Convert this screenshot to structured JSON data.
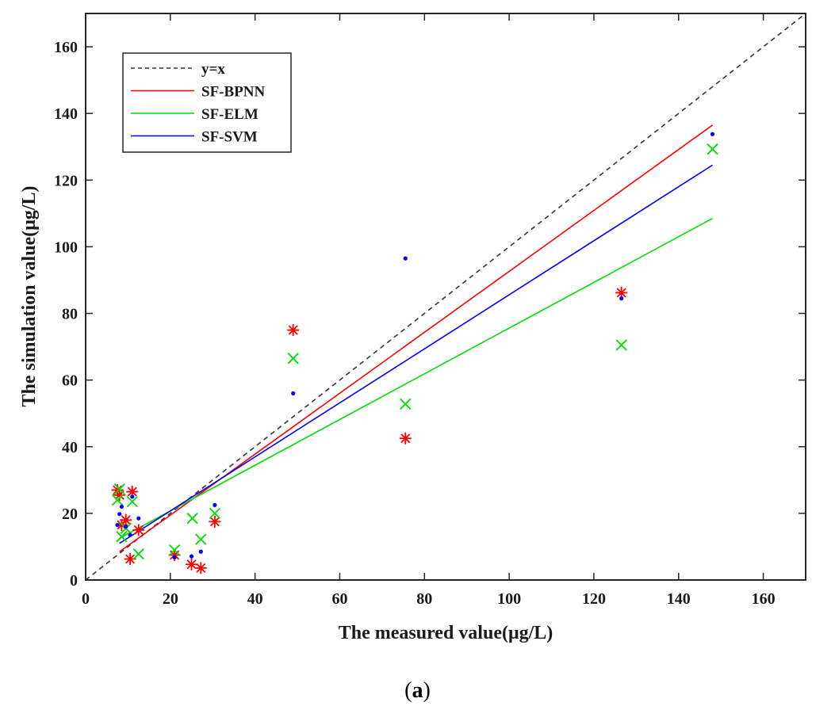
{
  "chart_data": {
    "type": "scatter",
    "xlabel": "The measured value(μg/L)",
    "ylabel": "The simulation value(μg/L)",
    "xlim": [
      0,
      170
    ],
    "ylim": [
      0,
      170
    ],
    "xticks": [
      0,
      20,
      40,
      60,
      80,
      100,
      120,
      140,
      160
    ],
    "yticks": [
      0,
      20,
      40,
      60,
      80,
      100,
      120,
      140,
      160
    ],
    "legend_position": "top-left",
    "lines": [
      {
        "name": "y=x",
        "color": "#333333",
        "dash": true,
        "x": [
          0,
          170
        ],
        "y": [
          0,
          170
        ]
      },
      {
        "name": "SF-BPNN",
        "color": "#ff0000",
        "dash": false,
        "x": [
          8,
          148
        ],
        "y": [
          8.5,
          136.5
        ]
      },
      {
        "name": "SF-ELM",
        "color": "#00dd00",
        "dash": false,
        "x": [
          8,
          148
        ],
        "y": [
          12.5,
          108.5
        ]
      },
      {
        "name": "SF-SVM",
        "color": "#0000ff",
        "dash": false,
        "x": [
          8,
          148
        ],
        "y": [
          11,
          124.5
        ]
      }
    ],
    "series": [
      {
        "name": "SF-BPNN",
        "marker": "asterisk",
        "color": "#ff0000",
        "points": [
          [
            7.5,
            27
          ],
          [
            8,
            25.5
          ],
          [
            8.5,
            16.5
          ],
          [
            9.5,
            18
          ],
          [
            10.5,
            6.3
          ],
          [
            11,
            26.5
          ],
          [
            12.5,
            15
          ],
          [
            21,
            7.5
          ],
          [
            25,
            4.7
          ],
          [
            27.2,
            3.6
          ],
          [
            30.5,
            17.5
          ],
          [
            49,
            75
          ],
          [
            75.5,
            42.5
          ],
          [
            126.5,
            86.2
          ]
        ]
      },
      {
        "name": "SF-ELM",
        "marker": "x",
        "color": "#00dd00",
        "points": [
          [
            7.5,
            24
          ],
          [
            8,
            27.3
          ],
          [
            8.5,
            13
          ],
          [
            9.5,
            15.5
          ],
          [
            11,
            23.5
          ],
          [
            12.5,
            7.8
          ],
          [
            21,
            9
          ],
          [
            25.2,
            18.5
          ],
          [
            27.2,
            12.2
          ],
          [
            30.5,
            20
          ],
          [
            49,
            66.5
          ],
          [
            75.5,
            52.8
          ],
          [
            126.5,
            70.5
          ],
          [
            148,
            129.3
          ]
        ]
      },
      {
        "name": "SF-SVM",
        "marker": "dot",
        "color": "#0000ff",
        "points": [
          [
            7.5,
            16.5
          ],
          [
            8,
            19.8
          ],
          [
            8.5,
            22
          ],
          [
            9.5,
            16
          ],
          [
            10.5,
            13.5
          ],
          [
            11,
            25
          ],
          [
            12.5,
            18.5
          ],
          [
            21,
            6.8
          ],
          [
            25,
            7.1
          ],
          [
            27.2,
            8.5
          ],
          [
            30.5,
            22.5
          ],
          [
            49,
            56
          ],
          [
            75.5,
            96.5
          ],
          [
            126.5,
            84.5
          ],
          [
            148,
            133.8
          ]
        ]
      }
    ]
  },
  "caption": {
    "open": "(",
    "letter": "a",
    "close": ")"
  }
}
